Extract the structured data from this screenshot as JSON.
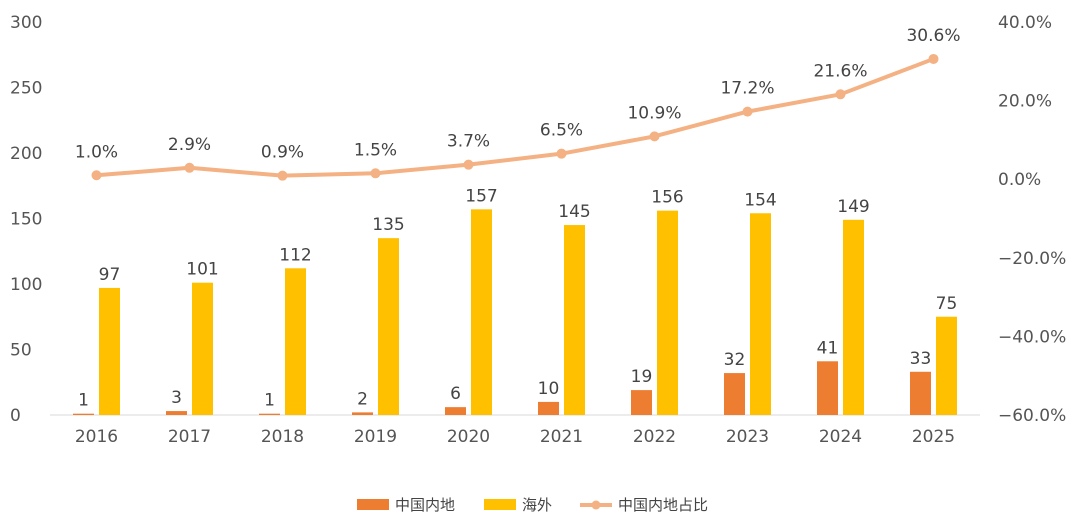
{
  "chart_data": {
    "type": "bar",
    "title": "",
    "categories": [
      "2016",
      "2017",
      "2018",
      "2019",
      "2020",
      "2021",
      "2022",
      "2023",
      "2024",
      "2025"
    ],
    "series": [
      {
        "name": "中国内地",
        "kind": "bar",
        "axis": "left",
        "color": "#ED7D31",
        "values": [
          1,
          3,
          1,
          2,
          6,
          10,
          19,
          32,
          41,
          33
        ],
        "labels": [
          "1",
          "3",
          "1",
          "2",
          "6",
          "10",
          "19",
          "32",
          "41",
          "33"
        ]
      },
      {
        "name": "海外",
        "kind": "bar",
        "axis": "left",
        "color": "#FFC000",
        "values": [
          97,
          101,
          112,
          135,
          157,
          145,
          156,
          154,
          149,
          75
        ],
        "labels": [
          "97",
          "101",
          "112",
          "135",
          "157",
          "145",
          "156",
          "154",
          "149",
          "75"
        ]
      },
      {
        "name": "中国内地占比",
        "kind": "line",
        "axis": "right",
        "color": "#F4B183",
        "values": [
          1.0,
          2.9,
          0.9,
          1.5,
          3.7,
          6.5,
          10.9,
          17.2,
          21.6,
          30.6
        ],
        "labels": [
          "1.0%",
          "2.9%",
          "0.9%",
          "1.5%",
          "3.7%",
          "6.5%",
          "10.9%",
          "17.2%",
          "21.6%",
          "30.6%"
        ]
      }
    ],
    "y_left": {
      "min": 0,
      "max": 300,
      "ticks": [
        "0",
        "50",
        "100",
        "150",
        "200",
        "250",
        "300"
      ]
    },
    "y_right": {
      "min": -60,
      "max": 40,
      "unit": "%",
      "ticks": [
        "−60.0%",
        "−40.0%",
        "−20.0%",
        "0.0%",
        "20.0%",
        "40.0%"
      ]
    },
    "grid": false,
    "legend_position": "bottom-center"
  }
}
